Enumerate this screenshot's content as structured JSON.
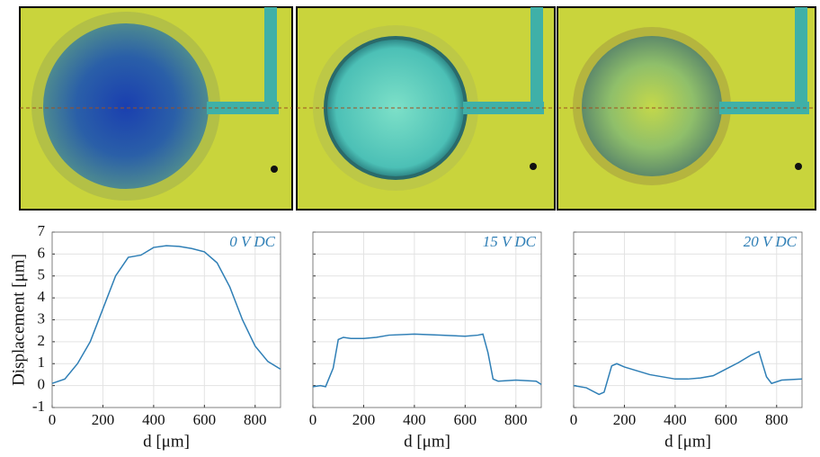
{
  "chart_data": [
    {
      "type": "line",
      "annotation": "0 V DC",
      "xlabel": "d [μm]",
      "ylabel": "Displacement [μm]",
      "color": "#2f7fb6",
      "x": [
        0,
        50,
        100,
        150,
        200,
        250,
        300,
        350,
        400,
        450,
        500,
        550,
        600,
        650,
        700,
        750,
        800,
        850,
        900
      ],
      "values": [
        0.1,
        0.3,
        1.0,
        2.0,
        3.5,
        5.0,
        5.85,
        5.95,
        6.3,
        6.38,
        6.35,
        6.25,
        6.1,
        5.6,
        4.5,
        3.0,
        1.8,
        1.1,
        0.75
      ],
      "xlim": [
        0,
        900
      ],
      "xticks": [
        0,
        200,
        400,
        600,
        800
      ],
      "ylim": [
        -1,
        7
      ],
      "yticks": [
        -1,
        0,
        1,
        2,
        3,
        4,
        5,
        6,
        7
      ],
      "grid": true,
      "show_ytick_labels": true
    },
    {
      "type": "line",
      "annotation": "15 V DC",
      "xlabel": "d [μm]",
      "color": "#2f7fb6",
      "x": [
        0,
        30,
        50,
        80,
        100,
        120,
        150,
        200,
        250,
        300,
        400,
        500,
        600,
        650,
        670,
        690,
        710,
        730,
        800,
        880,
        900
      ],
      "values": [
        -0.05,
        0,
        -0.05,
        0.8,
        2.1,
        2.2,
        2.15,
        2.15,
        2.2,
        2.3,
        2.35,
        2.3,
        2.25,
        2.3,
        2.35,
        1.5,
        0.3,
        0.2,
        0.25,
        0.2,
        0.05
      ],
      "xlim": [
        0,
        900
      ],
      "xticks": [
        0,
        200,
        400,
        600,
        800
      ],
      "ylim": [
        -1,
        7
      ],
      "yticks": [
        -1,
        0,
        1,
        2,
        3,
        4,
        5,
        6,
        7
      ],
      "grid": true,
      "show_ytick_labels": false
    },
    {
      "type": "line",
      "annotation": "20 V DC",
      "xlabel": "d [μm]",
      "color": "#2f7fb6",
      "x": [
        0,
        50,
        100,
        120,
        150,
        170,
        200,
        300,
        400,
        450,
        500,
        550,
        600,
        650,
        700,
        730,
        760,
        780,
        820,
        900
      ],
      "values": [
        0,
        -0.1,
        -0.4,
        -0.3,
        0.9,
        1.0,
        0.85,
        0.5,
        0.3,
        0.3,
        0.35,
        0.45,
        0.75,
        1.05,
        1.4,
        1.55,
        0.4,
        0.1,
        0.25,
        0.3
      ],
      "xlim": [
        0,
        900
      ],
      "xticks": [
        0,
        200,
        400,
        600,
        800
      ],
      "ylim": [
        -1,
        7
      ],
      "yticks": [
        -1,
        0,
        1,
        2,
        3,
        4,
        5,
        6,
        7
      ],
      "grid": true,
      "show_ytick_labels": false
    }
  ]
}
